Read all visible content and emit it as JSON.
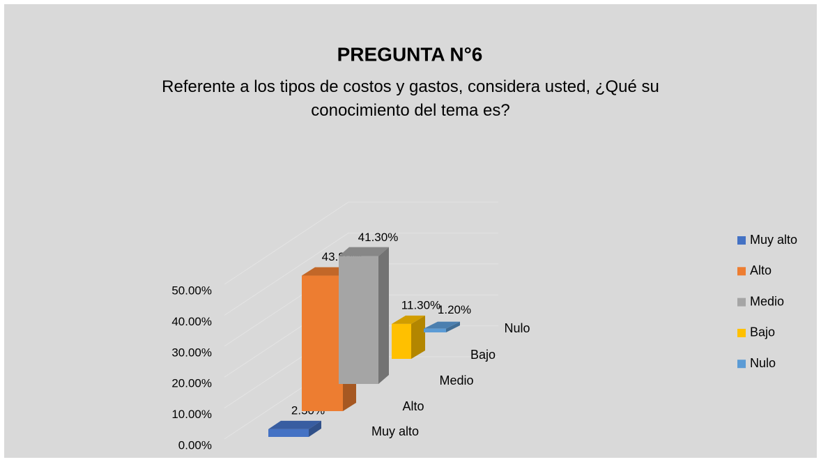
{
  "chart_data": {
    "type": "bar3d",
    "title": "PREGUNTA N°6",
    "subtitle": "Referente a los tipos de costos y gastos, considera usted, ¿Qué su conocimiento del tema es?",
    "categories": [
      "Muy alto",
      "Alto",
      "Medio",
      "Bajo",
      "Nulo"
    ],
    "series": [
      {
        "name": "Muy alto",
        "color": "#4472c4",
        "values": [
          2.5,
          null,
          null,
          null,
          null
        ],
        "value_labels": [
          "2.50%",
          null,
          null,
          null,
          null
        ]
      },
      {
        "name": "Alto",
        "color": "#ed7d31",
        "values": [
          null,
          43.8,
          null,
          null,
          null
        ],
        "value_labels": [
          null,
          "43.80%",
          null,
          null,
          null
        ]
      },
      {
        "name": "Medio",
        "color": "#a5a5a5",
        "values": [
          null,
          null,
          41.3,
          null,
          null
        ],
        "value_labels": [
          null,
          null,
          "41.30%",
          null,
          null
        ]
      },
      {
        "name": "Bajo",
        "color": "#ffc000",
        "values": [
          null,
          null,
          null,
          11.3,
          null
        ],
        "value_labels": [
          null,
          null,
          null,
          "11.30%",
          null
        ]
      },
      {
        "name": "Nulo",
        "color": "#5b9bd5",
        "values": [
          null,
          null,
          null,
          null,
          1.2
        ],
        "value_labels": [
          null,
          null,
          null,
          null,
          "1.20%"
        ]
      }
    ],
    "ylim": [
      0,
      50
    ],
    "yticks": [
      {
        "value": 0,
        "label": "0.00%"
      },
      {
        "value": 10,
        "label": "10.00%"
      },
      {
        "value": 20,
        "label": "20.00%"
      },
      {
        "value": 30,
        "label": "30.00%"
      },
      {
        "value": 40,
        "label": "40.00%"
      },
      {
        "value": 50,
        "label": "50.00%"
      }
    ],
    "grid": true,
    "legend": "right"
  }
}
